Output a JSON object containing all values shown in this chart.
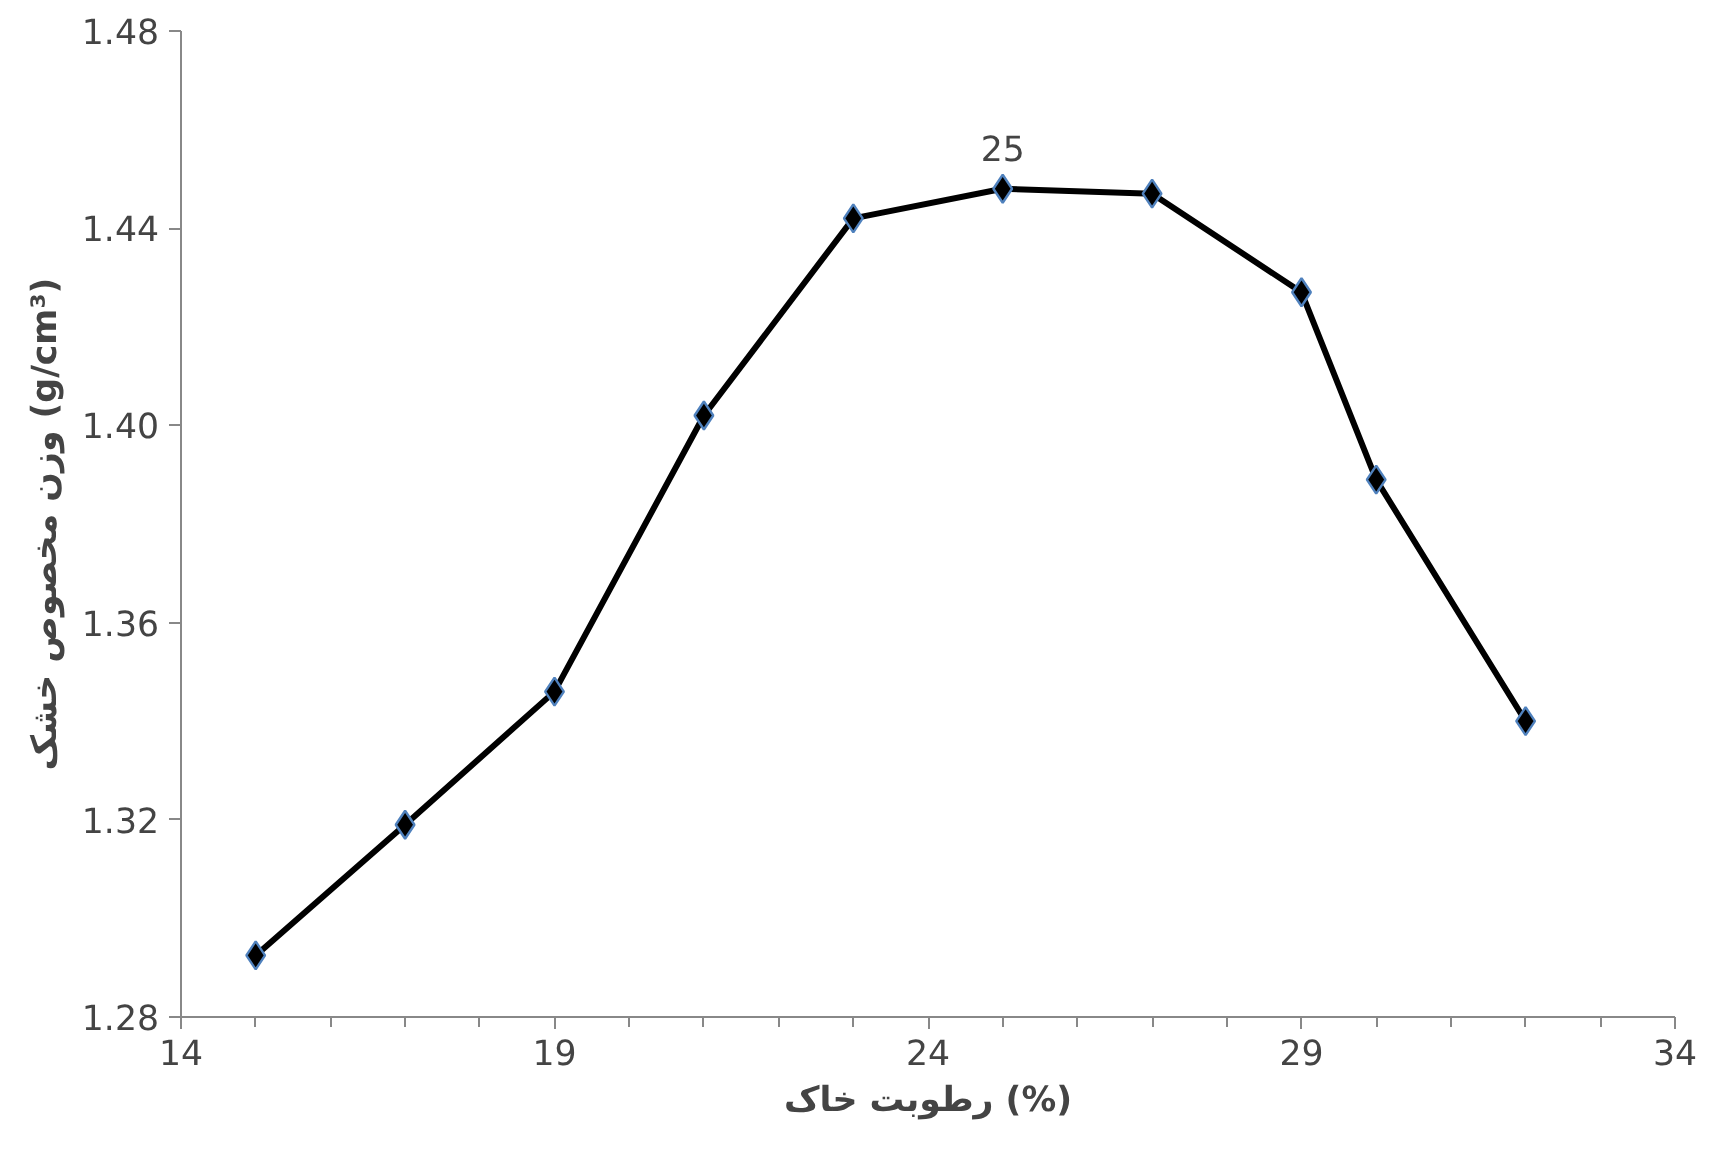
{
  "chart_data": {
    "type": "line",
    "xlabel": "رطوبت خاک (%)",
    "ylabel": "وزن مخصوص خشک (g/cm³)",
    "x": [
      15,
      17,
      19,
      21,
      23,
      25,
      27,
      29,
      30,
      32
    ],
    "series": [
      {
        "color": "#000000",
        "values": [
          1.2925,
          1.319,
          1.346,
          1.402,
          1.442,
          1.448,
          1.447,
          1.427,
          1.389,
          1.34
        ]
      }
    ],
    "xlim": [
      14,
      34
    ],
    "xticks": [
      14,
      19,
      24,
      29,
      34
    ],
    "ylim": [
      1.28,
      1.48
    ],
    "yticks": [
      {
        "value": 1.28,
        "label": "1.28"
      },
      {
        "value": 1.32,
        "label": "1.32"
      },
      {
        "value": 1.36,
        "label": "1.36"
      },
      {
        "value": 1.4,
        "label": "1.40"
      },
      {
        "value": 1.44,
        "label": "1.44"
      },
      {
        "value": 1.48,
        "label": "1.48"
      }
    ],
    "annotations": [
      {
        "text": "25",
        "x": 25,
        "y": 1.448
      }
    ],
    "marker": "diamond",
    "grid": false
  }
}
